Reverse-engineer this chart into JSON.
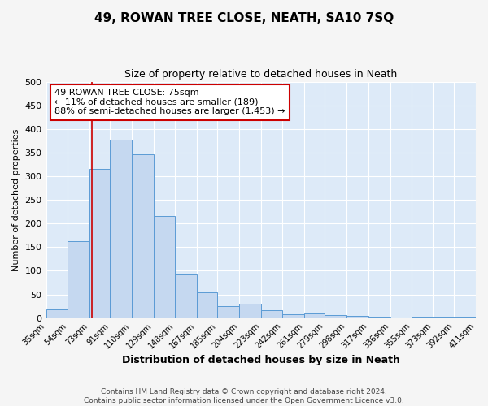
{
  "title": "49, ROWAN TREE CLOSE, NEATH, SA10 7SQ",
  "subtitle": "Size of property relative to detached houses in Neath",
  "xlabel": "Distribution of detached houses by size in Neath",
  "ylabel": "Number of detached properties",
  "bins": [
    35,
    54,
    73,
    91,
    110,
    129,
    148,
    167,
    185,
    204,
    223,
    242,
    261,
    279,
    298,
    317,
    336,
    355,
    373,
    392,
    411
  ],
  "counts": [
    18,
    163,
    315,
    378,
    347,
    216,
    93,
    55,
    25,
    30,
    16,
    8,
    10,
    7,
    4,
    1,
    0,
    2,
    1,
    1
  ],
  "bar_color": "#c5d8f0",
  "bar_edge_color": "#5b9bd5",
  "vline_x": 75,
  "vline_color": "#cc0000",
  "ylim": [
    0,
    500
  ],
  "annotation_text": "49 ROWAN TREE CLOSE: 75sqm\n← 11% of detached houses are smaller (189)\n88% of semi-detached houses are larger (1,453) →",
  "annotation_box_color": "#ffffff",
  "annotation_box_edge": "#cc0000",
  "footer_line1": "Contains HM Land Registry data © Crown copyright and database right 2024.",
  "footer_line2": "Contains public sector information licensed under the Open Government Licence v3.0.",
  "bg_color": "#ddeaf8",
  "grid_color": "#ffffff",
  "fig_bg_color": "#f5f5f5"
}
